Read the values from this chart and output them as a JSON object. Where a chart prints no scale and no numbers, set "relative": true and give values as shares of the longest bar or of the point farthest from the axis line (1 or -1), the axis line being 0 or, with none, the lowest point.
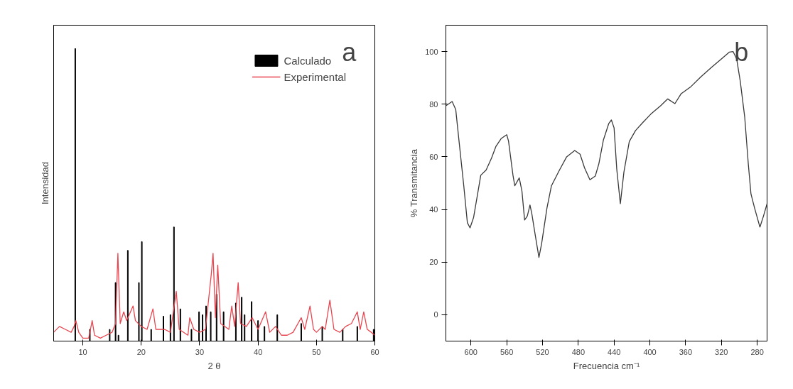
{
  "chart_data": [
    {
      "type": "bar",
      "relative": true,
      "xlabel": "2 θ",
      "ylabel": "Intensidad",
      "annotations": [
        "a"
      ],
      "xlim": [
        5,
        60
      ],
      "xticks": [
        10,
        20,
        30,
        40,
        50,
        60
      ],
      "legend": "top right",
      "grid": false,
      "series": [
        {
          "name": "Calculado",
          "type": "bar",
          "color": "#000000",
          "x": [
            8.7,
            11.2,
            14.6,
            15.6,
            16.1,
            17.7,
            19.6,
            20.1,
            21.7,
            23.8,
            25.0,
            25.6,
            26.7,
            28.6,
            29.9,
            30.5,
            31.1,
            31.9,
            32.9,
            34.1,
            36.2,
            37.2,
            37.7,
            38.9,
            40.0,
            41.1,
            43.3,
            47.4,
            51.0,
            54.5,
            57.0,
            59.8
          ],
          "values": [
            1,
            0.04,
            0.04,
            0.2,
            0.02,
            0.31,
            0.2,
            0.34,
            0.04,
            0.085,
            0.09,
            0.39,
            0.11,
            0.04,
            0.1,
            0.09,
            0.12,
            0.1,
            0.16,
            0.1,
            0.13,
            0.15,
            0.09,
            0.135,
            0.07,
            0.05,
            0.09,
            0.06,
            0.05,
            0.04,
            0.05,
            0.04
          ]
        },
        {
          "name": "Experimental",
          "type": "line",
          "color": "#e8454f",
          "x": [
            5,
            6,
            7,
            8,
            8.5,
            8.8,
            9.3,
            10,
            11,
            11.6,
            12,
            13,
            14,
            15,
            15.6,
            16.0,
            16.4,
            17,
            17.5,
            18.6,
            19,
            20,
            21,
            22,
            22.5,
            24,
            25,
            26,
            26.5,
            28,
            28.3,
            29,
            30,
            31,
            32,
            32.3,
            32.7,
            33.1,
            33.6,
            35,
            35.5,
            36,
            36.6,
            37,
            38,
            39,
            40,
            41.3,
            42,
            43,
            44,
            45,
            46,
            47.4,
            48,
            48.9,
            49.5,
            50,
            51,
            51.5,
            52.3,
            53,
            54,
            55,
            56,
            57,
            57.5,
            58.1,
            58.7,
            59.4,
            60
          ],
          "values": [
            0.03,
            0.05,
            0.04,
            0.03,
            0.05,
            0.07,
            0.03,
            0.01,
            0.01,
            0.07,
            0.02,
            0.01,
            0.02,
            0.03,
            0.06,
            0.3,
            0.06,
            0.1,
            0.07,
            0.12,
            0.07,
            0.05,
            0.04,
            0.11,
            0.04,
            0.04,
            0.03,
            0.17,
            0.04,
            0.02,
            0.08,
            0.04,
            0.03,
            0.04,
            0.23,
            0.3,
            0.08,
            0.26,
            0.06,
            0.04,
            0.12,
            0.05,
            0.2,
            0.06,
            0.05,
            0.08,
            0.04,
            0.1,
            0.03,
            0.05,
            0.02,
            0.02,
            0.03,
            0.08,
            0.04,
            0.12,
            0.04,
            0.03,
            0.05,
            0.04,
            0.14,
            0.04,
            0.03,
            0.05,
            0.06,
            0.1,
            0.04,
            0.1,
            0.04,
            0.03,
            0.02
          ]
        }
      ]
    },
    {
      "type": "line",
      "xlabel": "Frecuencia cm⁻¹",
      "ylabel": "% Transmitancia",
      "annotations": [
        "b"
      ],
      "xlim": [
        628,
        269
      ],
      "xticks": [
        600,
        560,
        520,
        480,
        440,
        400,
        360,
        320,
        280
      ],
      "ylim": [
        -10,
        110
      ],
      "yticks": [
        0,
        20,
        40,
        60,
        80,
        100
      ],
      "grid": false,
      "legend": false,
      "series": [
        {
          "color": "#3a3a3a",
          "x": [
            628,
            621,
            617,
            613,
            608,
            604,
            601,
            597,
            593,
            589,
            583,
            577,
            572,
            566,
            560,
            558,
            553,
            551,
            546,
            543,
            540,
            537,
            534,
            532,
            528,
            524,
            521,
            515,
            510,
            501,
            493,
            484,
            478,
            473,
            467,
            461,
            457,
            452,
            446,
            443,
            440,
            437,
            433,
            429,
            423,
            416,
            408,
            399,
            388,
            380,
            372,
            365,
            354,
            343,
            331,
            320,
            311,
            307,
            303,
            299,
            294,
            290,
            287,
            283,
            277,
            273,
            269
          ],
          "values": [
            79.4,
            81,
            78,
            65,
            49,
            35,
            33,
            37,
            45,
            53,
            55,
            59.5,
            64,
            67,
            68.4,
            66,
            53,
            49,
            52,
            47,
            36,
            37.5,
            41.7,
            38.5,
            30,
            21.8,
            27,
            40.6,
            49,
            55,
            60,
            62.4,
            61,
            55.8,
            51.3,
            52.7,
            57.4,
            66.3,
            72.6,
            74,
            71,
            55.3,
            42.2,
            54.2,
            65.8,
            70,
            73,
            76.2,
            79.4,
            82,
            80.2,
            84,
            86.7,
            90.4,
            94,
            97.2,
            99.8,
            100,
            97.2,
            88.8,
            75.2,
            57.4,
            45.9,
            40.6,
            33.3,
            37.5,
            42.2
          ]
        }
      ]
    }
  ]
}
